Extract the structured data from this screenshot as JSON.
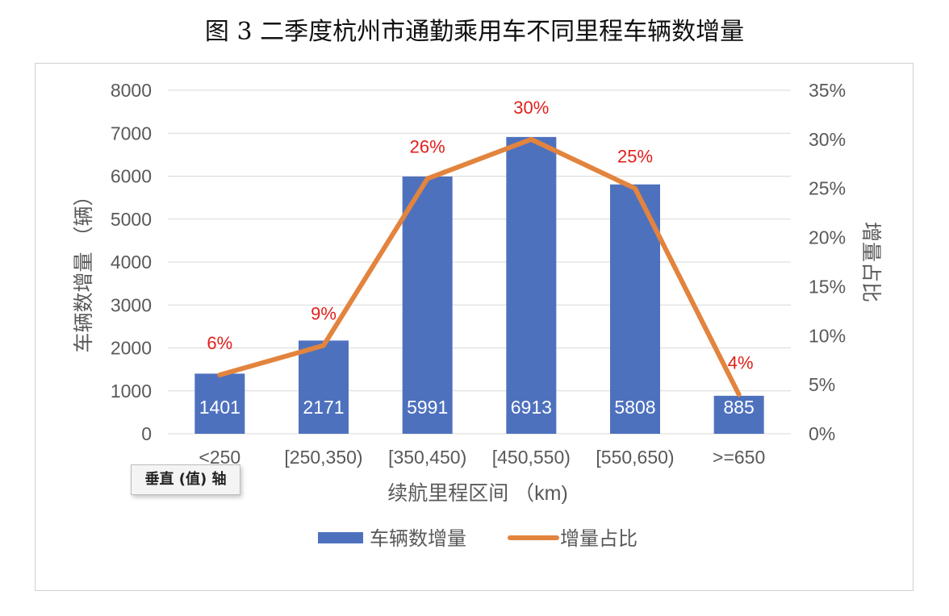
{
  "figure_title": "图 3  二季度杭州市通勤乘用车不同里程车辆数增量",
  "tooltip": "垂直 (值) 轴",
  "colors": {
    "bar": "#4e71be",
    "line": "#e2843e",
    "pct_label": "#e0201b",
    "bar_label": "#ffffff",
    "axis_text": "#595959",
    "grid": "#d9d9d9"
  },
  "chart_data": {
    "type": "bar",
    "categories": [
      "<250",
      "[250,350)",
      "[350,450)",
      "[450,550)",
      "[550,650)",
      ">=650"
    ],
    "series": [
      {
        "name": "车辆数增量",
        "type": "bar",
        "axis": "left",
        "values": [
          1401,
          2171,
          5991,
          6913,
          5808,
          885
        ]
      },
      {
        "name": "增量占比",
        "type": "line",
        "axis": "right",
        "values": [
          6,
          9,
          26,
          30,
          25,
          4
        ]
      }
    ],
    "bar_labels": [
      "1401",
      "2171",
      "5991",
      "6913",
      "5808",
      "885"
    ],
    "line_labels": [
      "6%",
      "9%",
      "26%",
      "30%",
      "25%",
      "4%"
    ],
    "xlabel": "续航里程区间 （km)",
    "ylabel": "车辆数增量 （辆）",
    "y2label": "增量占比",
    "ylim": [
      0,
      8000
    ],
    "y2lim": [
      0,
      35
    ],
    "yticks": [
      "0",
      "1000",
      "2000",
      "3000",
      "4000",
      "5000",
      "6000",
      "7000",
      "8000"
    ],
    "y2ticks": [
      "0%",
      "5%",
      "10%",
      "15%",
      "20%",
      "25%",
      "30%",
      "35%"
    ],
    "grid": true,
    "legend_position": "bottom"
  }
}
